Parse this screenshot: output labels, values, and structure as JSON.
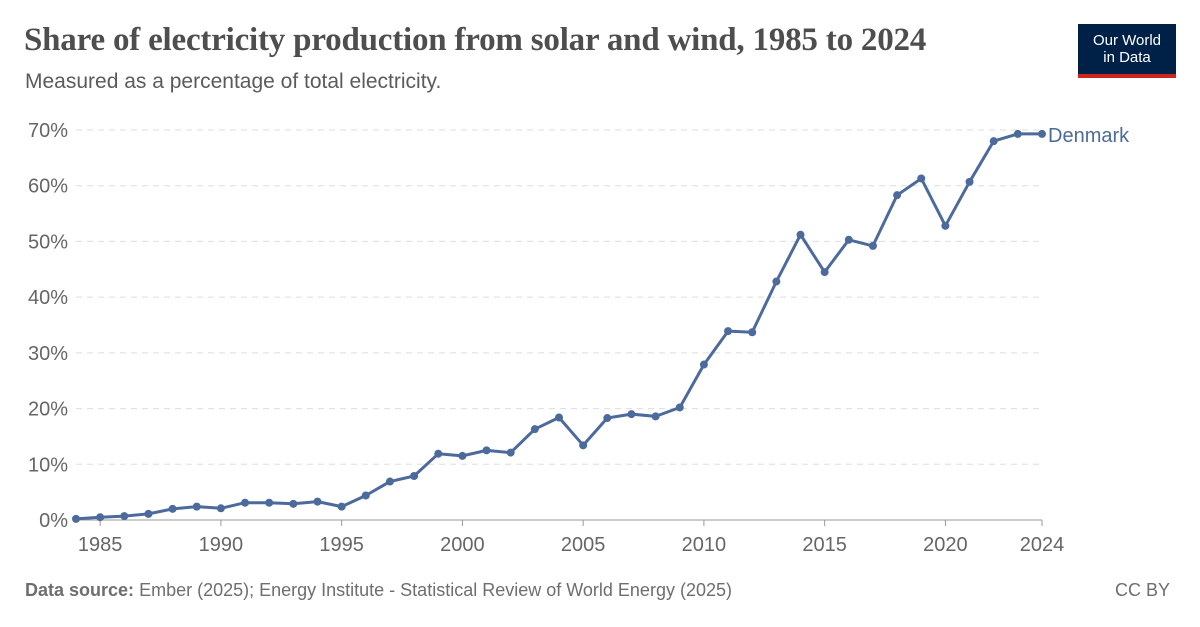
{
  "header": {
    "title": "Share of electricity production from solar and wind, 1985 to 2024",
    "subtitle": "Measured as a percentage of total electricity."
  },
  "logo": {
    "line1": "Our World",
    "line2": "in Data"
  },
  "footer": {
    "source_label": "Data source:",
    "source_text": "Ember (2025); Energy Institute - Statistical Review of World Energy (2025)",
    "license": "CC BY"
  },
  "colors": {
    "series": "#4c6a9c",
    "grid": "#dddddd",
    "axis": "#666666"
  },
  "chart_data": {
    "type": "line",
    "title": "Share of electricity production from solar and wind, 1985 to 2024",
    "xlabel": "",
    "ylabel": "",
    "xlim": [
      1984,
      2024
    ],
    "ylim": [
      0,
      70
    ],
    "y_ticks": [
      0,
      10,
      20,
      30,
      40,
      50,
      60,
      70
    ],
    "y_tick_labels": [
      "0%",
      "10%",
      "20%",
      "30%",
      "40%",
      "50%",
      "60%",
      "70%"
    ],
    "x_ticks": [
      1985,
      1990,
      1995,
      2000,
      2005,
      2010,
      2015,
      2020,
      2024
    ],
    "x_tick_labels": [
      "1985",
      "1990",
      "1995",
      "2000",
      "2005",
      "2010",
      "2015",
      "2020",
      "2024"
    ],
    "grid": true,
    "series": [
      {
        "name": "Denmark",
        "x": [
          1984,
          1985,
          1986,
          1987,
          1988,
          1989,
          1990,
          1991,
          1992,
          1993,
          1994,
          1995,
          1996,
          1997,
          1998,
          1999,
          2000,
          2001,
          2002,
          2003,
          2004,
          2005,
          2006,
          2007,
          2008,
          2009,
          2010,
          2011,
          2012,
          2013,
          2014,
          2015,
          2016,
          2017,
          2018,
          2019,
          2020,
          2021,
          2022,
          2023,
          2024
        ],
        "values": [
          0.2,
          0.5,
          0.7,
          1.1,
          2.0,
          2.4,
          2.1,
          3.1,
          3.1,
          2.9,
          3.3,
          2.4,
          4.4,
          6.9,
          7.9,
          11.9,
          11.5,
          12.5,
          12.1,
          16.3,
          18.4,
          13.4,
          18.3,
          19.0,
          18.6,
          20.2,
          27.9,
          33.9,
          33.7,
          42.8,
          51.2,
          44.5,
          50.3,
          49.2,
          58.3,
          61.3,
          52.8,
          60.7,
          68.0,
          69.3,
          69.3
        ]
      }
    ]
  }
}
